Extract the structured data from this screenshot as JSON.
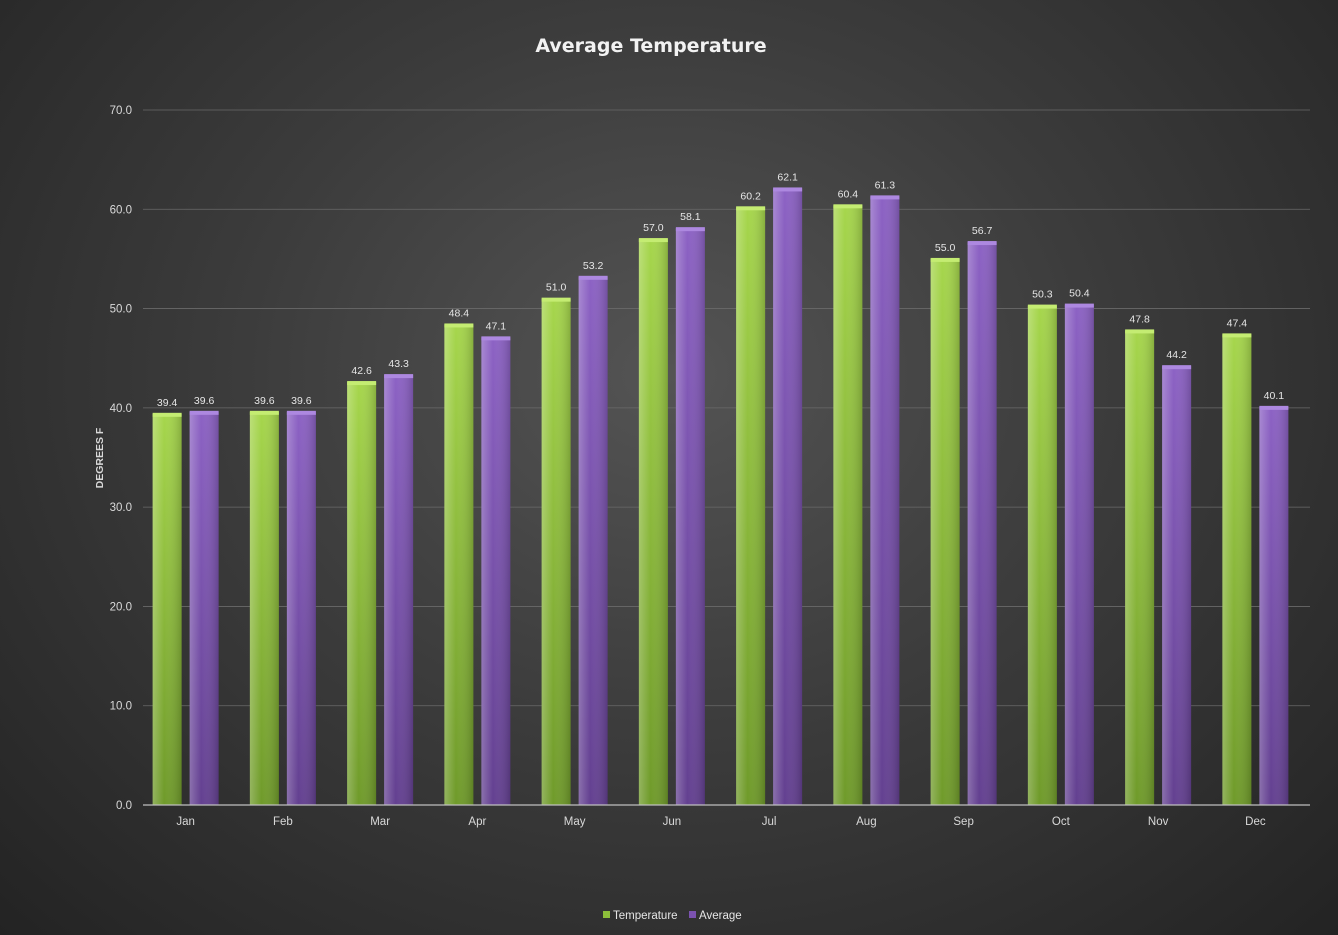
{
  "chart_data": {
    "type": "bar",
    "title": "Average Temperature",
    "xlabel": "",
    "ylabel": "DEGREES F",
    "ylim": [
      0,
      70
    ],
    "y_ticks": [
      "0.0",
      "10.0",
      "20.0",
      "30.0",
      "40.0",
      "50.0",
      "60.0",
      "70.0"
    ],
    "grid": true,
    "legend_position": "bottom",
    "categories": [
      "Jan",
      "Feb",
      "Mar",
      "Apr",
      "May",
      "Jun",
      "Jul",
      "Aug",
      "Sep",
      "Oct",
      "Nov",
      "Dec"
    ],
    "series": [
      {
        "name": "Temperature",
        "color": "#8cbd3a",
        "values": [
          39.4,
          39.6,
          42.6,
          48.4,
          51.0,
          57.0,
          60.2,
          60.4,
          55.0,
          50.3,
          47.8,
          47.4
        ],
        "labels": [
          "39.4",
          "39.6",
          "42.6",
          "48.4",
          "51.0",
          "57.0",
          "60.2",
          "60.4",
          "55.0",
          "50.3",
          "47.8",
          "47.4"
        ]
      },
      {
        "name": "Average",
        "color": "#7b52b0",
        "values": [
          39.6,
          39.6,
          43.3,
          47.1,
          53.2,
          58.1,
          62.1,
          61.3,
          56.7,
          50.4,
          44.2,
          40.1
        ],
        "labels": [
          "39.6",
          "39.6",
          "43.3",
          "47.1",
          "53.2",
          "58.1",
          "62.1",
          "61.3",
          "56.7",
          "50.4",
          "44.2",
          "40.1"
        ]
      }
    ]
  }
}
